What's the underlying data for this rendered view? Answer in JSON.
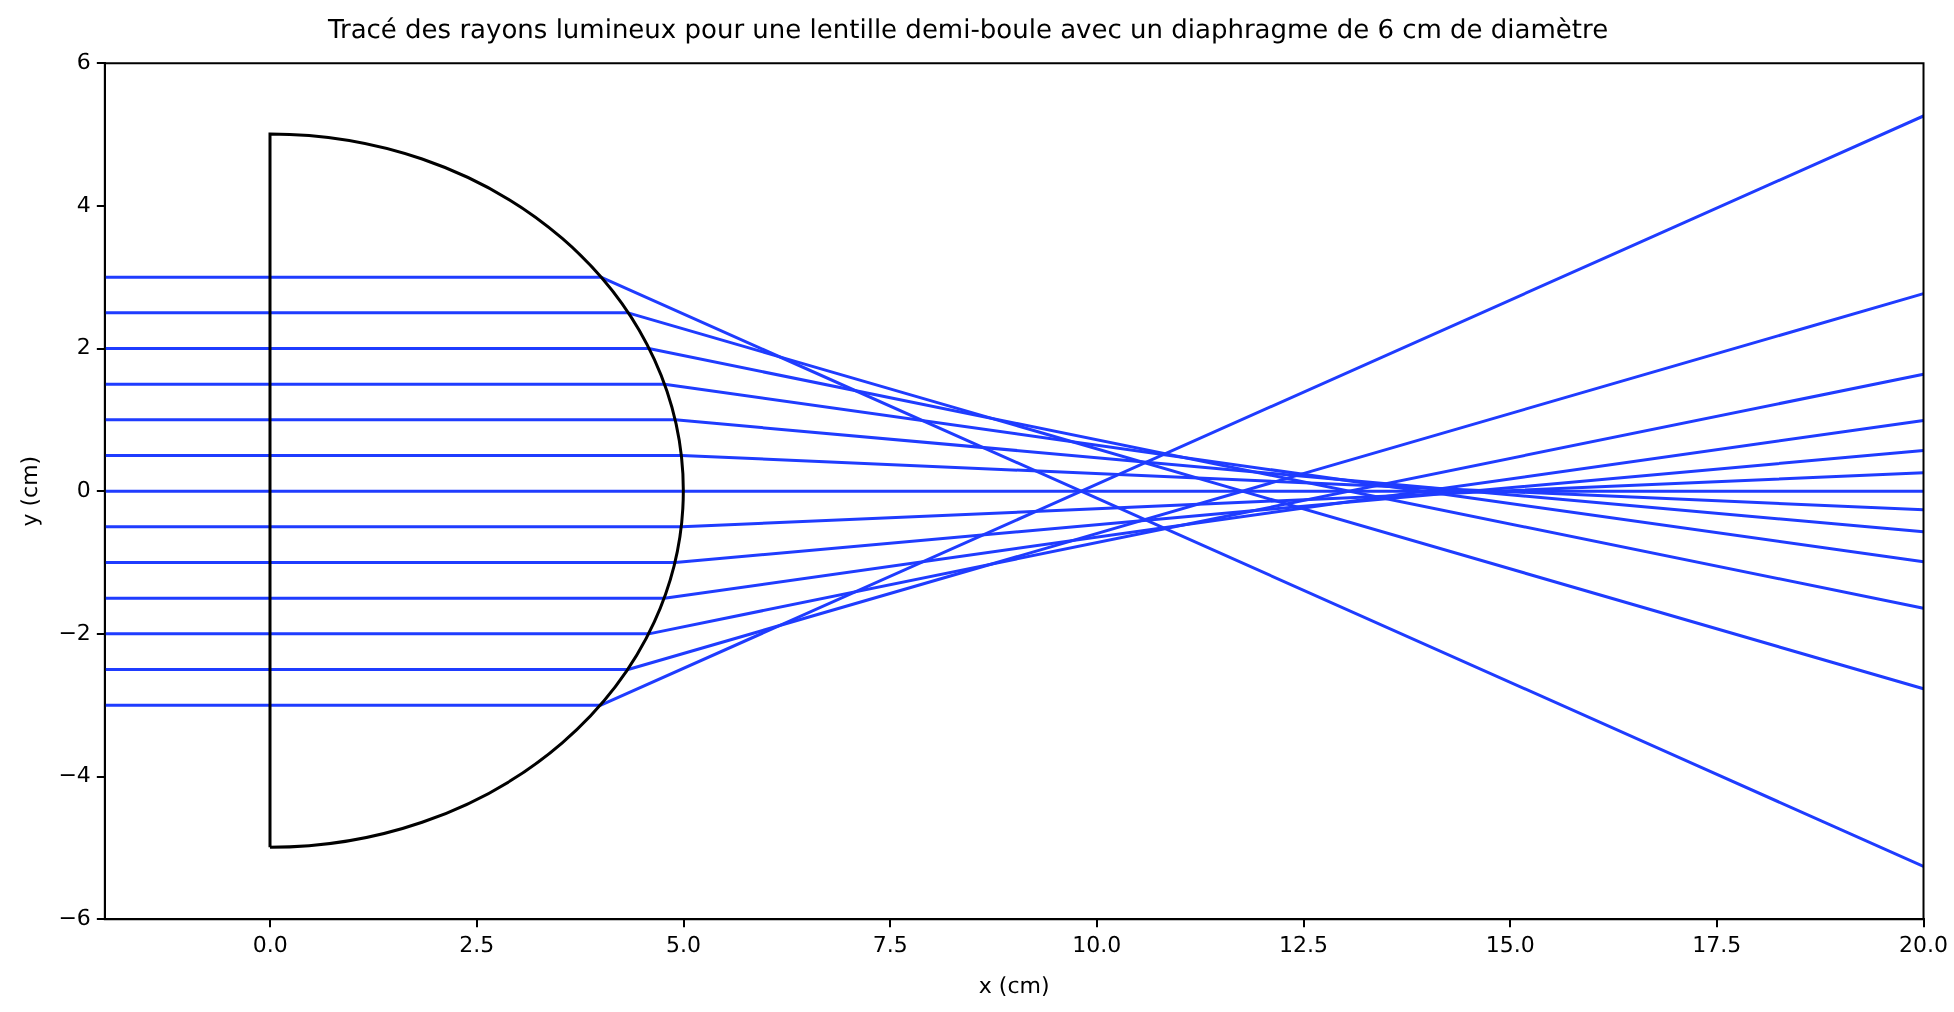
{
  "chart_data": {
    "type": "line",
    "title": "Tracé des rayons lumineux pour une lentille demi-boule avec un diaphragme de 6 cm de diamètre",
    "xlabel": "x (cm)",
    "ylabel": "y (cm)",
    "xlim": [
      -2,
      20
    ],
    "xticks": [
      {
        "value": 0,
        "label": "0.0"
      },
      {
        "value": 2.5,
        "label": "2.5"
      },
      {
        "value": 5,
        "label": "5.0"
      },
      {
        "value": 7.5,
        "label": "7.5"
      },
      {
        "value": 10,
        "label": "10.0"
      },
      {
        "value": 12.5,
        "label": "12.5"
      },
      {
        "value": 15,
        "label": "15.0"
      },
      {
        "value": 17.5,
        "label": "17.5"
      },
      {
        "value": 20,
        "label": "20.0"
      }
    ],
    "ylim": [
      -6,
      6
    ],
    "yticks": [
      {
        "value": -6,
        "label": "−6"
      },
      {
        "value": -4,
        "label": "−4"
      },
      {
        "value": -2,
        "label": "−2"
      },
      0,
      2,
      4,
      6
    ],
    "grid": false,
    "legend": false,
    "marker": "none",
    "line_style": "solid",
    "series": [
      {
        "color": "#1f3cff",
        "x": [
          -2,
          4,
          20
        ],
        "values": [
          3,
          3,
          -5.26
        ]
      },
      {
        "color": "#1f3cff",
        "x": [
          -2,
          4.33,
          20
        ],
        "values": [
          2.5,
          2.5,
          -2.77
        ]
      },
      {
        "color": "#1f3cff",
        "x": [
          -2,
          4.58,
          20
        ],
        "values": [
          2,
          2,
          -1.64
        ]
      },
      {
        "color": "#1f3cff",
        "x": [
          -2,
          4.77,
          20
        ],
        "values": [
          1.5,
          1.5,
          -0.99
        ]
      },
      {
        "color": "#1f3cff",
        "x": [
          -2,
          4.9,
          20
        ],
        "values": [
          1,
          1,
          -0.57
        ]
      },
      {
        "color": "#1f3cff",
        "x": [
          -2,
          4.98,
          20
        ],
        "values": [
          0.5,
          0.5,
          -0.26
        ]
      },
      {
        "color": "#1f3cff",
        "x": [
          -2,
          5,
          20
        ],
        "values": [
          0,
          0,
          0
        ]
      },
      {
        "color": "#1f3cff",
        "x": [
          -2,
          4.98,
          20
        ],
        "values": [
          -0.5,
          -0.5,
          0.26
        ]
      },
      {
        "color": "#1f3cff",
        "x": [
          -2,
          4.9,
          20
        ],
        "values": [
          -1,
          -1,
          0.57
        ]
      },
      {
        "color": "#1f3cff",
        "x": [
          -2,
          4.77,
          20
        ],
        "values": [
          -1.5,
          -1.5,
          0.99
        ]
      },
      {
        "color": "#1f3cff",
        "x": [
          -2,
          4.58,
          20
        ],
        "values": [
          -2,
          -2,
          1.64
        ]
      },
      {
        "color": "#1f3cff",
        "x": [
          -2,
          4.33,
          20
        ],
        "values": [
          -2.5,
          -2.5,
          2.77
        ]
      },
      {
        "color": "#1f3cff",
        "x": [
          -2,
          4,
          20
        ],
        "values": [
          -3,
          -3,
          5.26
        ]
      }
    ]
  }
}
